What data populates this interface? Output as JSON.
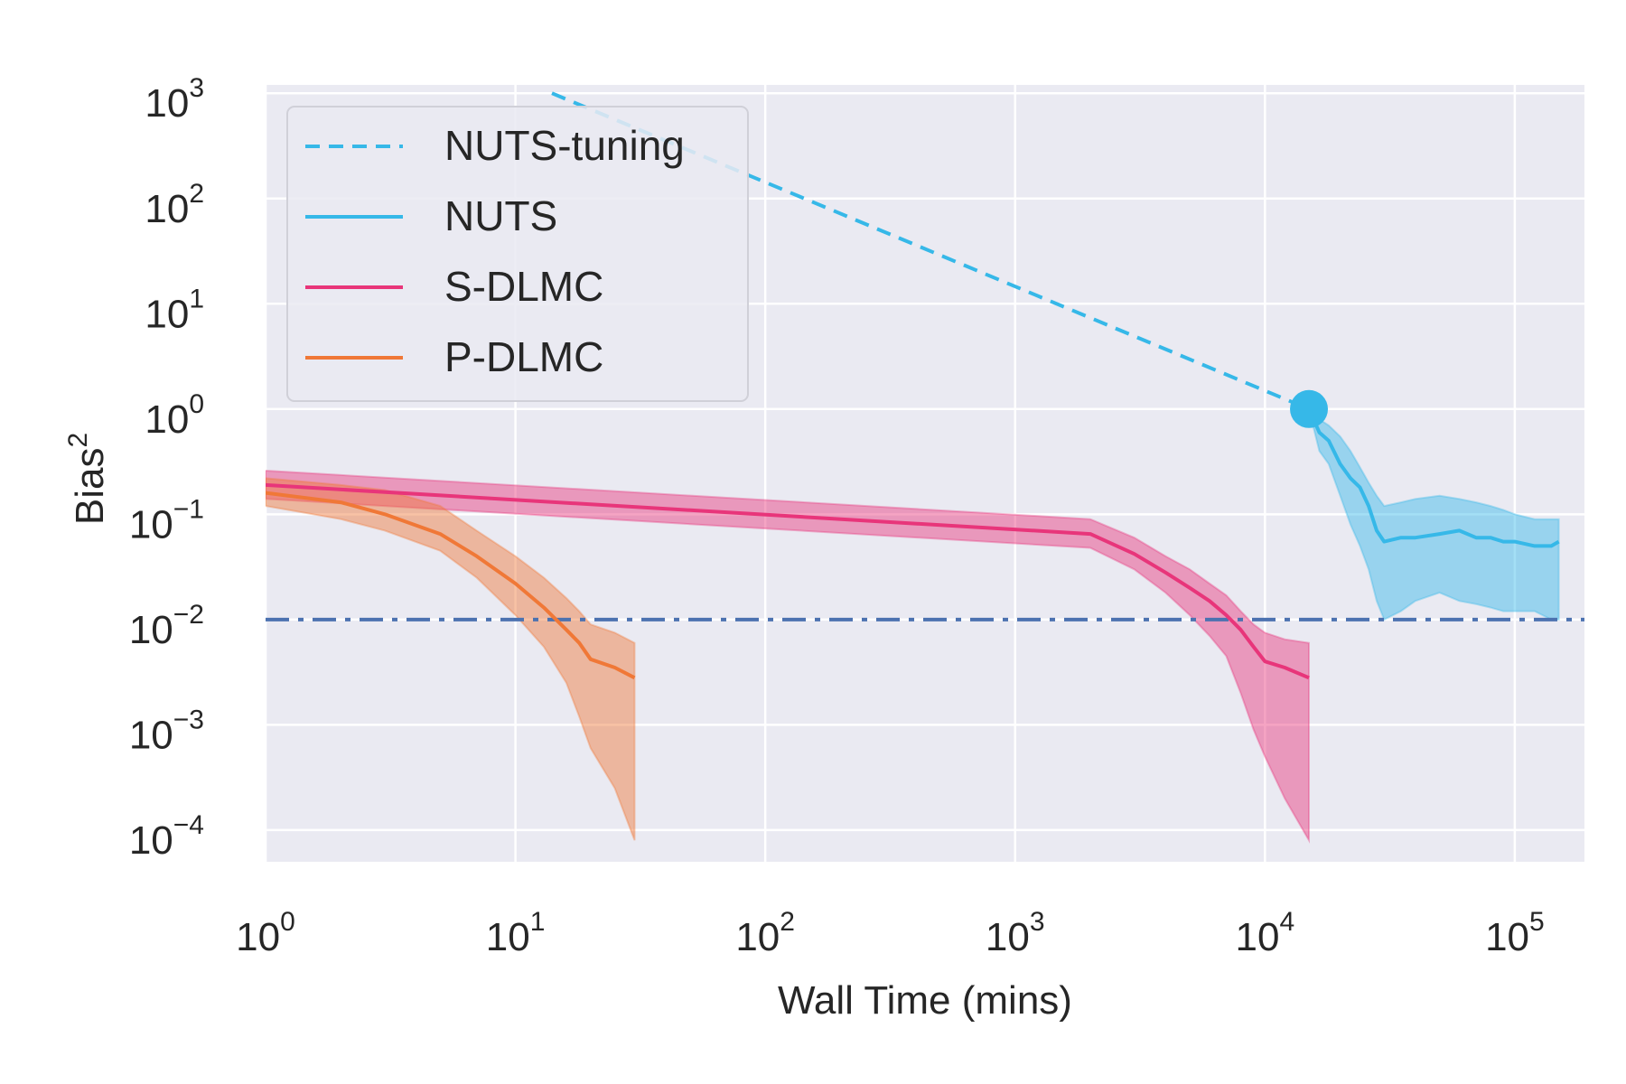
{
  "chart_data": {
    "type": "line",
    "xlabel": "Wall Time (mins)",
    "ylabel_base": "Bias",
    "ylabel_sup": "2",
    "x_scale": "log",
    "y_scale": "log",
    "xlim": [
      1,
      190000
    ],
    "ylim": [
      5e-05,
      1200
    ],
    "grid": true,
    "legend_placement": "top-left",
    "x_ticks": [
      {
        "value": 1,
        "base": "10",
        "exp": "0"
      },
      {
        "value": 10,
        "base": "10",
        "exp": "1"
      },
      {
        "value": 100,
        "base": "10",
        "exp": "2"
      },
      {
        "value": 1000,
        "base": "10",
        "exp": "3"
      },
      {
        "value": 10000,
        "base": "10",
        "exp": "4"
      },
      {
        "value": 100000,
        "base": "10",
        "exp": "5"
      }
    ],
    "y_ticks": [
      {
        "value": 1000,
        "base": "10",
        "exp": "3"
      },
      {
        "value": 100,
        "base": "10",
        "exp": "2"
      },
      {
        "value": 10,
        "base": "10",
        "exp": "1"
      },
      {
        "value": 1,
        "base": "10",
        "exp": "0"
      },
      {
        "value": 0.1,
        "base": "10",
        "exp": "−1"
      },
      {
        "value": 0.01,
        "base": "10",
        "exp": "−2"
      },
      {
        "value": 0.001,
        "base": "10",
        "exp": "−3"
      },
      {
        "value": 0.0001,
        "base": "10",
        "exp": "−4"
      }
    ],
    "reference_line": {
      "y": 0.01,
      "color": "#4c72b0",
      "style": "dashdot"
    },
    "series": [
      {
        "name": "NUTS-tuning",
        "color": "#36b8e8",
        "style": "dashed",
        "x": [
          14,
          15000
        ],
        "y": [
          1000,
          1.0
        ],
        "end_marker": {
          "x": 15000,
          "y": 1.0
        }
      },
      {
        "name": "NUTS",
        "color": "#36b8e8",
        "style": "solid",
        "x": [
          15000,
          16500,
          18000,
          20000,
          22000,
          24000,
          26000,
          28000,
          30000,
          35000,
          40000,
          50000,
          60000,
          70000,
          80000,
          90000,
          100000,
          120000,
          140000,
          150000
        ],
        "y": [
          1.0,
          0.6,
          0.5,
          0.3,
          0.22,
          0.18,
          0.12,
          0.07,
          0.055,
          0.06,
          0.06,
          0.065,
          0.07,
          0.06,
          0.06,
          0.055,
          0.055,
          0.05,
          0.05,
          0.055
        ],
        "band_low": [
          1.0,
          0.4,
          0.3,
          0.15,
          0.08,
          0.05,
          0.03,
          0.015,
          0.01,
          0.012,
          0.015,
          0.018,
          0.015,
          0.014,
          0.013,
          0.012,
          0.012,
          0.012,
          0.01,
          0.01
        ],
        "band_high": [
          1.0,
          0.8,
          0.7,
          0.55,
          0.4,
          0.28,
          0.2,
          0.15,
          0.12,
          0.13,
          0.14,
          0.15,
          0.14,
          0.13,
          0.12,
          0.11,
          0.1,
          0.09,
          0.09,
          0.09
        ]
      },
      {
        "name": "S-DLMC",
        "color": "#e8357a",
        "style": "solid",
        "x": [
          1,
          2000,
          3000,
          4000,
          5000,
          6000,
          7000,
          8000,
          9000,
          10000,
          12000,
          15000
        ],
        "y": [
          0.19,
          0.065,
          0.042,
          0.028,
          0.02,
          0.015,
          0.011,
          0.008,
          0.0055,
          0.004,
          0.0035,
          0.0028
        ],
        "band_low": [
          0.14,
          0.048,
          0.03,
          0.018,
          0.011,
          0.007,
          0.0045,
          0.002,
          0.0009,
          0.0005,
          0.0002,
          8e-05
        ],
        "band_high": [
          0.26,
          0.09,
          0.06,
          0.04,
          0.03,
          0.022,
          0.017,
          0.012,
          0.009,
          0.0075,
          0.0065,
          0.006
        ]
      },
      {
        "name": "P-DLMC",
        "color": "#f07837",
        "style": "solid",
        "x": [
          1,
          2,
          3,
          5,
          7,
          10,
          13,
          16,
          18,
          20,
          25,
          30
        ],
        "y": [
          0.16,
          0.13,
          0.1,
          0.065,
          0.04,
          0.022,
          0.013,
          0.008,
          0.006,
          0.0042,
          0.0035,
          0.0028
        ],
        "band_low": [
          0.12,
          0.09,
          0.07,
          0.045,
          0.025,
          0.011,
          0.0055,
          0.0025,
          0.0012,
          0.0006,
          0.00025,
          8e-05
        ],
        "band_high": [
          0.22,
          0.19,
          0.17,
          0.12,
          0.07,
          0.04,
          0.025,
          0.016,
          0.012,
          0.009,
          0.0075,
          0.006
        ]
      }
    ]
  }
}
